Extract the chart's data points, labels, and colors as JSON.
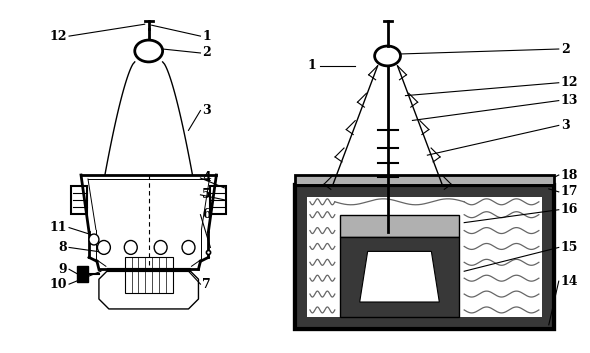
{
  "bg_color": "#ffffff",
  "line_color": "#000000",
  "gray_light": "#b0b0b0",
  "gray_dark": "#383838",
  "gray_mid": "#707070",
  "fig_width": 5.9,
  "fig_height": 3.53,
  "dpi": 100
}
